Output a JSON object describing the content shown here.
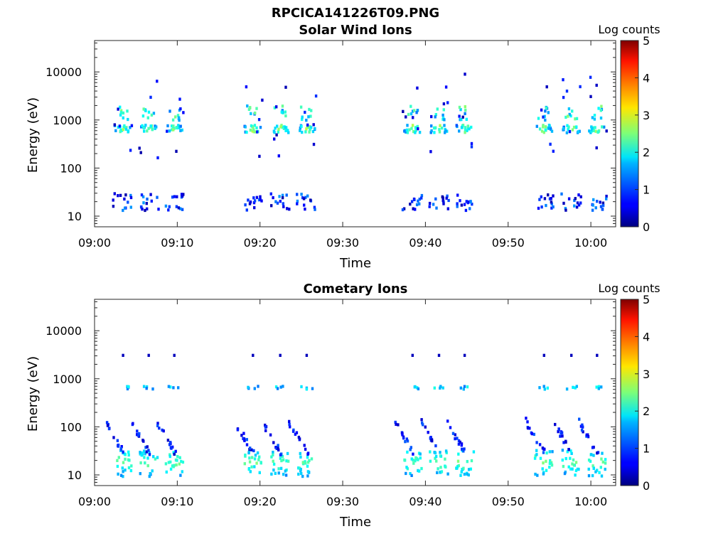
{
  "figure_title": "RPCICA141226T09.PNG",
  "chart_data": [
    {
      "type": "heatmap",
      "title": "Solar Wind Ions",
      "xlabel": "Time",
      "ylabel": "Energy (eV)",
      "yscale": "log",
      "ylim": [
        6,
        45000
      ],
      "xlim": [
        "09:00",
        "10:03"
      ],
      "x_ticks": [
        "09:00",
        "09:10",
        "09:20",
        "09:30",
        "09:40",
        "09:50",
        "10:00"
      ],
      "y_ticks": [
        "10",
        "100",
        "1000",
        "10000"
      ],
      "colorbar": {
        "label": "Log counts",
        "range": [
          0,
          5
        ],
        "ticks": [
          "0",
          "1",
          "2",
          "3",
          "4",
          "5"
        ],
        "colormap": "jet"
      },
      "bursts_min": [
        3.3,
        6.4,
        9.5,
        19.0,
        22.3,
        25.5,
        38.3,
        41.5,
        44.6,
        54.2,
        57.5,
        60.6
      ],
      "peak_energy_eV": 700,
      "peak_log_counts": 2.9
    },
    {
      "type": "heatmap",
      "title": "Cometary Ions",
      "xlabel": "Time",
      "ylabel": "Energy (eV)",
      "yscale": "log",
      "ylim": [
        6,
        45000
      ],
      "xlim": [
        "09:00",
        "10:03"
      ],
      "x_ticks": [
        "09:00",
        "09:10",
        "09:20",
        "09:30",
        "09:40",
        "09:50",
        "10:00"
      ],
      "y_ticks": [
        "10",
        "100",
        "1000",
        "10000"
      ],
      "colorbar": {
        "label": "Log counts",
        "range": [
          0,
          5
        ],
        "ticks": [
          "0",
          "1",
          "2",
          "3",
          "4",
          "5"
        ],
        "colormap": "jet"
      },
      "bursts_min": [
        3.3,
        6.4,
        9.5,
        19.0,
        22.3,
        25.5,
        38.3,
        41.5,
        44.6,
        54.2,
        57.5,
        60.6
      ],
      "peak_energy_eV": 20,
      "peak_log_counts": 2.6
    }
  ]
}
